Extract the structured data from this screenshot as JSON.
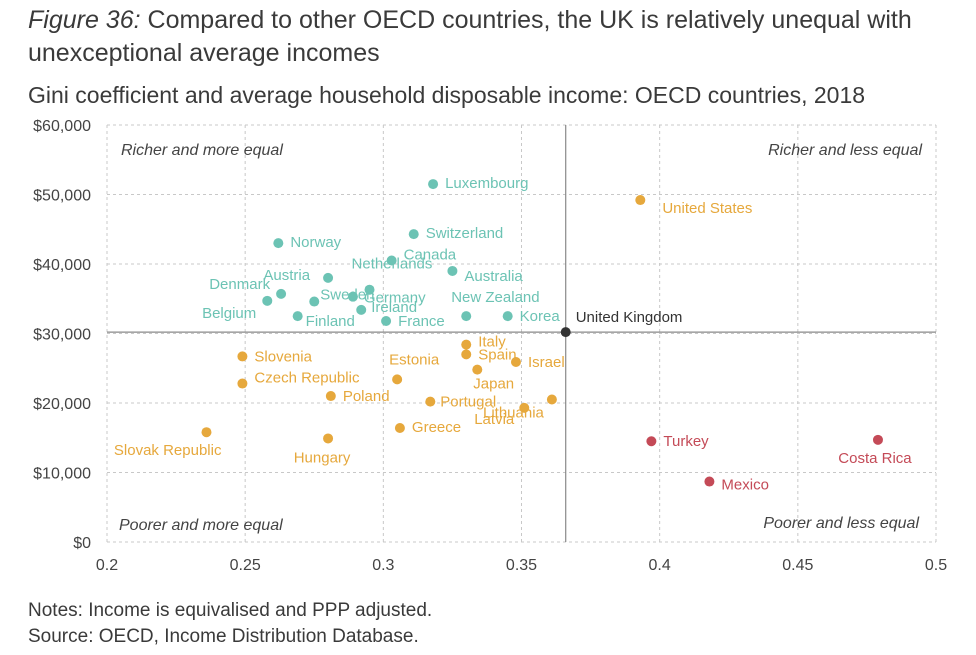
{
  "title": {
    "label": "Figure 36:",
    "text": "Compared to other OECD countries, the UK is relatively unequal with unexceptional average incomes"
  },
  "subtitle": "Gini coefficient and average household disposable income: OECD countries, 2018",
  "notes": "Notes: Income is equivalised and PPP adjusted.",
  "source": "Source: OECD, Income Distribution Database.",
  "colors": {
    "teal": "#6cc3b4",
    "orange": "#e6a83c",
    "red": "#c44a57",
    "uk": "#333333",
    "grid": "#c8c8c8",
    "refline": "#888888"
  },
  "chart_data": {
    "type": "scatter",
    "x_ticks": [
      "0.2",
      "0.25",
      "0.3",
      "0.35",
      "0.4",
      "0.45",
      "0.5"
    ],
    "y_ticks": [
      "$0",
      "$10,000",
      "$20,000",
      "$30,000",
      "$40,000",
      "$50,000",
      "$60,000"
    ],
    "xlim": [
      0.2,
      0.5
    ],
    "ylim": [
      0,
      60000
    ],
    "grid": true,
    "reference_lines": {
      "x": 0.366,
      "y": 30200
    },
    "quadrant_labels": {
      "top_left": "Richer and more equal",
      "top_right": "Richer and less equal",
      "bottom_left": "Poorer and more equal",
      "bottom_right": "Poorer and less equal"
    },
    "points": [
      {
        "name": "Luxembourg",
        "x": 0.318,
        "y": 51500,
        "group": "teal"
      },
      {
        "name": "Switzerland",
        "x": 0.311,
        "y": 44300,
        "group": "teal"
      },
      {
        "name": "Norway",
        "x": 0.262,
        "y": 43000,
        "group": "teal"
      },
      {
        "name": "Canada",
        "x": 0.303,
        "y": 40500,
        "group": "teal"
      },
      {
        "name": "Australia",
        "x": 0.325,
        "y": 39000,
        "group": "teal"
      },
      {
        "name": "Austria",
        "x": 0.28,
        "y": 38000,
        "group": "teal"
      },
      {
        "name": "Netherlands",
        "x": 0.295,
        "y": 36300,
        "group": "teal"
      },
      {
        "name": "Denmark",
        "x": 0.263,
        "y": 35700,
        "group": "teal"
      },
      {
        "name": "Sweden",
        "x": 0.275,
        "y": 34600,
        "group": "teal"
      },
      {
        "name": "Germany",
        "x": 0.289,
        "y": 35300,
        "group": "teal"
      },
      {
        "name": "Belgium",
        "x": 0.258,
        "y": 34700,
        "group": "teal"
      },
      {
        "name": "Ireland",
        "x": 0.292,
        "y": 33400,
        "group": "teal"
      },
      {
        "name": "Finland",
        "x": 0.269,
        "y": 32500,
        "group": "teal"
      },
      {
        "name": "France",
        "x": 0.301,
        "y": 31800,
        "group": "teal"
      },
      {
        "name": "New Zealand",
        "x": 0.33,
        "y": 32500,
        "group": "teal"
      },
      {
        "name": "Korea",
        "x": 0.345,
        "y": 32500,
        "group": "teal"
      },
      {
        "name": "United Kingdom",
        "x": 0.366,
        "y": 30200,
        "group": "uk"
      },
      {
        "name": "United States",
        "x": 0.393,
        "y": 49200,
        "group": "orange"
      },
      {
        "name": "Italy",
        "x": 0.33,
        "y": 28400,
        "group": "orange"
      },
      {
        "name": "Spain",
        "x": 0.33,
        "y": 27000,
        "group": "orange"
      },
      {
        "name": "Israel",
        "x": 0.348,
        "y": 25900,
        "group": "orange"
      },
      {
        "name": "Slovenia",
        "x": 0.249,
        "y": 26700,
        "group": "orange"
      },
      {
        "name": "Estonia",
        "x": 0.305,
        "y": 23400,
        "group": "orange"
      },
      {
        "name": "Japan",
        "x": 0.334,
        "y": 24800,
        "group": "orange"
      },
      {
        "name": "Czech Republic",
        "x": 0.249,
        "y": 22800,
        "group": "orange"
      },
      {
        "name": "Poland",
        "x": 0.281,
        "y": 21000,
        "group": "orange"
      },
      {
        "name": "Portugal",
        "x": 0.317,
        "y": 20200,
        "group": "orange"
      },
      {
        "name": "Latvia",
        "x": 0.351,
        "y": 19300,
        "group": "orange"
      },
      {
        "name": "Lithuania",
        "x": 0.361,
        "y": 20500,
        "group": "orange"
      },
      {
        "name": "Greece",
        "x": 0.306,
        "y": 16400,
        "group": "orange"
      },
      {
        "name": "Slovak Republic",
        "x": 0.236,
        "y": 15800,
        "group": "orange"
      },
      {
        "name": "Hungary",
        "x": 0.28,
        "y": 14900,
        "group": "orange"
      },
      {
        "name": "Turkey",
        "x": 0.397,
        "y": 14500,
        "group": "red"
      },
      {
        "name": "Costa Rica",
        "x": 0.479,
        "y": 14700,
        "group": "red"
      },
      {
        "name": "Mexico",
        "x": 0.418,
        "y": 8700,
        "group": "red"
      }
    ]
  }
}
